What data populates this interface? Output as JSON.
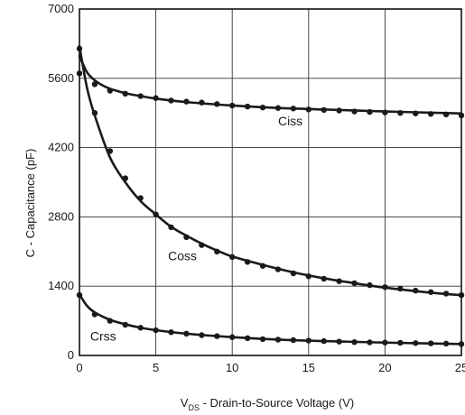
{
  "chart_data": {
    "type": "line",
    "title": "",
    "xlabel_main": "V",
    "xlabel_sub": "DS",
    "xlabel_rest": " - Drain-to-Source Voltage (V)",
    "ylabel": "C - Capacitance (pF)",
    "xlim": [
      0,
      25
    ],
    "ylim": [
      0,
      7000
    ],
    "x_ticks": [
      0,
      5,
      10,
      15,
      20,
      25
    ],
    "x_tick_labels": [
      "0",
      "5",
      "10",
      "15",
      "20",
      "25"
    ],
    "y_ticks": [
      0,
      1400,
      2800,
      4200,
      5600,
      7000
    ],
    "y_tick_labels": [
      "0",
      "1400",
      "2800",
      "4200",
      "5600",
      "7000"
    ],
    "grid": true,
    "series": [
      {
        "name": "Ciss",
        "line": [
          [
            0,
            6050
          ],
          [
            0.5,
            5720
          ],
          [
            1,
            5560
          ],
          [
            1.5,
            5460
          ],
          [
            2,
            5390
          ],
          [
            3,
            5300
          ],
          [
            4,
            5240
          ],
          [
            5,
            5190
          ],
          [
            7,
            5120
          ],
          [
            10,
            5050
          ],
          [
            13,
            5000
          ],
          [
            16,
            4970
          ],
          [
            20,
            4930
          ],
          [
            25,
            4890
          ]
        ],
        "points": [
          [
            0,
            5700
          ],
          [
            1,
            5480
          ],
          [
            2,
            5350
          ],
          [
            3,
            5290
          ],
          [
            4,
            5240
          ],
          [
            5,
            5200
          ],
          [
            6,
            5150
          ],
          [
            7,
            5130
          ],
          [
            8,
            5110
          ],
          [
            9,
            5080
          ],
          [
            10,
            5050
          ],
          [
            11,
            5030
          ],
          [
            12,
            5010
          ],
          [
            13,
            5000
          ],
          [
            14,
            4990
          ],
          [
            15,
            4970
          ],
          [
            16,
            4960
          ],
          [
            17,
            4950
          ],
          [
            18,
            4930
          ],
          [
            19,
            4920
          ],
          [
            20,
            4910
          ],
          [
            21,
            4900
          ],
          [
            22,
            4890
          ],
          [
            23,
            4880
          ],
          [
            24,
            4870
          ],
          [
            25,
            4850
          ]
        ]
      },
      {
        "name": "Coss",
        "line": [
          [
            0,
            6250
          ],
          [
            0.5,
            5400
          ],
          [
            1,
            4850
          ],
          [
            2,
            4000
          ],
          [
            3,
            3500
          ],
          [
            4,
            3120
          ],
          [
            5,
            2850
          ],
          [
            6,
            2600
          ],
          [
            7,
            2420
          ],
          [
            8,
            2260
          ],
          [
            9,
            2120
          ],
          [
            10,
            2000
          ],
          [
            12,
            1830
          ],
          [
            14,
            1680
          ],
          [
            16,
            1560
          ],
          [
            18,
            1460
          ],
          [
            20,
            1370
          ],
          [
            22,
            1300
          ],
          [
            24,
            1240
          ],
          [
            25,
            1220
          ]
        ],
        "points": [
          [
            0,
            6200
          ],
          [
            1,
            4900
          ],
          [
            2,
            4130
          ],
          [
            3,
            3580
          ],
          [
            4,
            3180
          ],
          [
            5,
            2850
          ],
          [
            6,
            2590
          ],
          [
            7,
            2390
          ],
          [
            8,
            2230
          ],
          [
            9,
            2100
          ],
          [
            10,
            1990
          ],
          [
            11,
            1890
          ],
          [
            12,
            1810
          ],
          [
            13,
            1740
          ],
          [
            14,
            1660
          ],
          [
            15,
            1600
          ],
          [
            16,
            1550
          ],
          [
            17,
            1500
          ],
          [
            18,
            1460
          ],
          [
            19,
            1420
          ],
          [
            20,
            1380
          ],
          [
            21,
            1350
          ],
          [
            22,
            1310
          ],
          [
            23,
            1280
          ],
          [
            24,
            1250
          ],
          [
            25,
            1220
          ]
        ]
      },
      {
        "name": "Crss",
        "line": [
          [
            0,
            1230
          ],
          [
            0.5,
            1000
          ],
          [
            1,
            870
          ],
          [
            2,
            720
          ],
          [
            3,
            630
          ],
          [
            4,
            560
          ],
          [
            5,
            510
          ],
          [
            7,
            440
          ],
          [
            10,
            370
          ],
          [
            13,
            320
          ],
          [
            16,
            290
          ],
          [
            20,
            260
          ],
          [
            25,
            230
          ]
        ],
        "points": [
          [
            0,
            1220
          ],
          [
            1,
            830
          ],
          [
            2,
            700
          ],
          [
            3,
            620
          ],
          [
            4,
            560
          ],
          [
            5,
            510
          ],
          [
            6,
            470
          ],
          [
            7,
            440
          ],
          [
            8,
            410
          ],
          [
            9,
            390
          ],
          [
            10,
            370
          ],
          [
            11,
            350
          ],
          [
            12,
            330
          ],
          [
            13,
            320
          ],
          [
            14,
            310
          ],
          [
            15,
            300
          ],
          [
            16,
            290
          ],
          [
            17,
            280
          ],
          [
            18,
            270
          ],
          [
            19,
            265
          ],
          [
            20,
            260
          ],
          [
            21,
            255
          ],
          [
            22,
            250
          ],
          [
            23,
            245
          ],
          [
            24,
            240
          ],
          [
            25,
            230
          ]
        ]
      }
    ],
    "series_labels": [
      {
        "text": "Ciss",
        "x": 13,
        "y": 4650
      },
      {
        "text": "Coss",
        "x": 5.8,
        "y": 1920
      },
      {
        "text": "Crss",
        "x": 0.7,
        "y": 300
      }
    ]
  }
}
